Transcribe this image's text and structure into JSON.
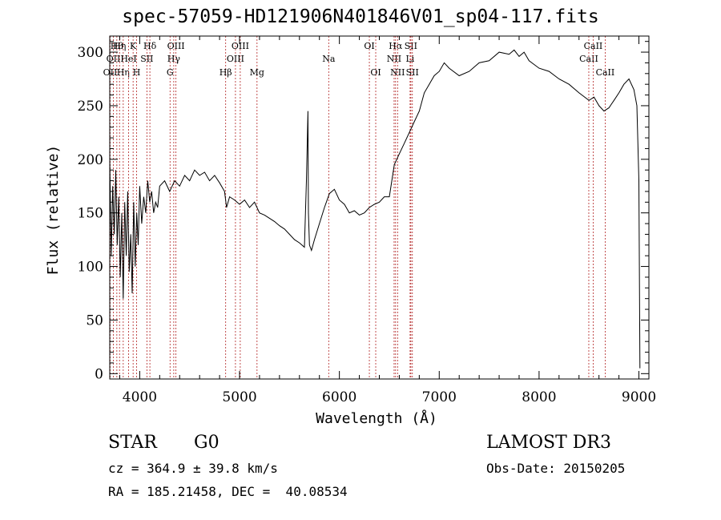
{
  "chart_data": {
    "type": "line",
    "title": "spec-57059-HD121906N401846V01_sp04-117.fits",
    "xlabel": "Wavelength (Å)",
    "ylabel": "Flux (relative)",
    "xlim": [
      3700,
      9100
    ],
    "ylim": [
      -5,
      315
    ],
    "x_ticks": [
      4000,
      5000,
      6000,
      7000,
      8000,
      9000
    ],
    "y_ticks": [
      0,
      50,
      100,
      150,
      200,
      250,
      300
    ],
    "grid": false,
    "line_color": "#000000",
    "marker_color": "#b22222",
    "series": [
      {
        "x": [
          3700,
          3715,
          3730,
          3745,
          3760,
          3775,
          3790,
          3805,
          3820,
          3835,
          3850,
          3865,
          3880,
          3895,
          3910,
          3925,
          3940,
          3955,
          3970,
          3985,
          4000,
          4020,
          4040,
          4060,
          4080,
          4100,
          4120,
          4140,
          4160,
          4180,
          4200,
          4250,
          4300,
          4350,
          4400,
          4450,
          4500,
          4550,
          4600,
          4650,
          4700,
          4750,
          4800,
          4850,
          4870,
          4900,
          4950,
          5000,
          5050,
          5100,
          5150,
          5200,
          5250,
          5300,
          5350,
          5400,
          5450,
          5500,
          5550,
          5600,
          5650,
          5670,
          5685,
          5690,
          5700,
          5720,
          5750,
          5800,
          5850,
          5900,
          5950,
          6000,
          6050,
          6100,
          6150,
          6200,
          6250,
          6300,
          6350,
          6400,
          6450,
          6500,
          6550,
          6600,
          6650,
          6700,
          6750,
          6800,
          6850,
          6900,
          6950,
          7000,
          7050,
          7100,
          7200,
          7300,
          7400,
          7500,
          7600,
          7700,
          7750,
          7800,
          7850,
          7900,
          8000,
          8100,
          8200,
          8300,
          8400,
          8500,
          8550,
          8600,
          8650,
          8700,
          8750,
          8800,
          8850,
          8900,
          8950,
          8980,
          9000,
          9010
        ],
        "values": [
          200,
          110,
          175,
          130,
          190,
          120,
          165,
          90,
          150,
          70,
          160,
          110,
          170,
          95,
          130,
          75,
          160,
          100,
          150,
          120,
          175,
          140,
          165,
          150,
          180,
          160,
          170,
          150,
          160,
          155,
          175,
          180,
          170,
          180,
          175,
          185,
          180,
          190,
          185,
          188,
          180,
          185,
          178,
          170,
          155,
          165,
          162,
          158,
          162,
          155,
          160,
          150,
          148,
          145,
          142,
          138,
          135,
          130,
          125,
          122,
          118,
          180,
          245,
          150,
          120,
          115,
          125,
          140,
          155,
          168,
          172,
          162,
          158,
          150,
          152,
          148,
          150,
          155,
          158,
          160,
          165,
          165,
          195,
          205,
          215,
          225,
          235,
          245,
          262,
          270,
          278,
          282,
          290,
          285,
          278,
          282,
          290,
          292,
          300,
          298,
          302,
          296,
          300,
          292,
          285,
          282,
          275,
          270,
          262,
          255,
          258,
          250,
          245,
          248,
          255,
          262,
          270,
          275,
          265,
          250,
          180,
          5
        ]
      }
    ],
    "lines": [
      {
        "x": 3704,
        "label": "OII",
        "row": 3
      },
      {
        "x": 3736,
        "label": "OII",
        "row": 2
      },
      {
        "x": 3771,
        "label": "Hθ",
        "row": 1
      },
      {
        "x": 3798,
        "label": "Hη",
        "row": 1
      },
      {
        "x": 3835,
        "label": "Hη",
        "row": 3
      },
      {
        "x": 3889,
        "label": "HeI",
        "row": 2
      },
      {
        "x": 3934,
        "label": "K",
        "row": 1
      },
      {
        "x": 3969,
        "label": "H",
        "row": 3
      },
      {
        "x": 4072,
        "label": "SII",
        "row": 2
      },
      {
        "x": 4102,
        "label": "Hδ",
        "row": 1
      },
      {
        "x": 4304,
        "label": "G",
        "row": 3
      },
      {
        "x": 4341,
        "label": "Hγ",
        "row": 2
      },
      {
        "x": 4363,
        "label": "OIII",
        "row": 1
      },
      {
        "x": 4861,
        "label": "Hβ",
        "row": 3
      },
      {
        "x": 4959,
        "label": "OIII",
        "row": 2
      },
      {
        "x": 5007,
        "label": "OIII",
        "row": 1
      },
      {
        "x": 5175,
        "label": "Mg",
        "row": 3
      },
      {
        "x": 5893,
        "label": "Na",
        "row": 2
      },
      {
        "x": 6300,
        "label": "OI",
        "row": 1
      },
      {
        "x": 6364,
        "label": "OI",
        "row": 3
      },
      {
        "x": 6548,
        "label": "NII",
        "row": 2
      },
      {
        "x": 6563,
        "label": "Hα",
        "row": 1
      },
      {
        "x": 6583,
        "label": "NII",
        "row": 3
      },
      {
        "x": 6708,
        "label": "Li",
        "row": 2
      },
      {
        "x": 6716,
        "label": "SII",
        "row": 1
      },
      {
        "x": 6731,
        "label": "SII",
        "row": 3
      },
      {
        "x": 8498,
        "label": "CaII",
        "row": 2
      },
      {
        "x": 8542,
        "label": "CaII",
        "row": 1
      },
      {
        "x": 8662,
        "label": "CaII",
        "row": 3
      }
    ]
  },
  "info": {
    "object_class": "STAR",
    "subclass": "G0",
    "survey": "LAMOST DR3",
    "redshift": "cz = 364.9 ± 39.8 km/s",
    "obs_date": "Obs-Date: 20150205",
    "coords": "RA = 185.21458, DEC =  40.08534"
  }
}
